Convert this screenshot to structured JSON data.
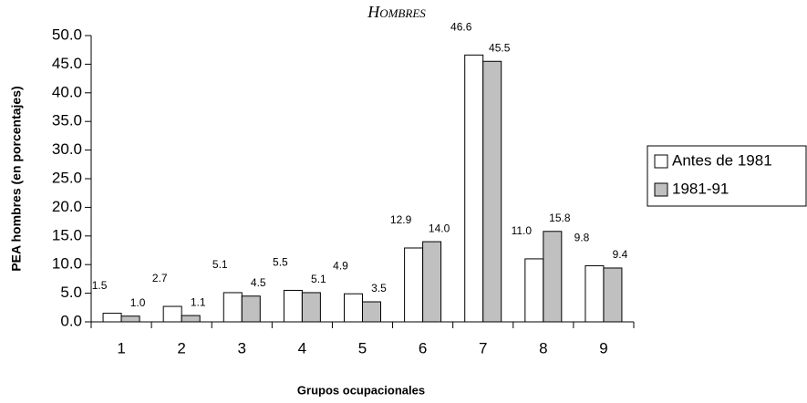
{
  "chart_data": {
    "type": "bar",
    "title": "Hombres",
    "x_label": "Grupos ocupacionales",
    "y_label": "PEA hombres (en porcentajes)",
    "categories": [
      "1",
      "2",
      "3",
      "4",
      "5",
      "6",
      "7",
      "8",
      "9"
    ],
    "series": [
      {
        "name": "Antes de 1981",
        "color": "#ffffff",
        "values": [
          1.5,
          2.7,
          5.1,
          5.5,
          4.9,
          12.9,
          46.6,
          11.0,
          9.8
        ],
        "value_labels": [
          "1.5",
          "2.7",
          "5.1",
          "5.5",
          "4.9",
          "12.9",
          "46.6",
          "11.0",
          "9.8"
        ]
      },
      {
        "name": "1981-91",
        "color": "#c0c0c0",
        "values": [
          1.0,
          1.1,
          4.5,
          5.1,
          3.5,
          14.0,
          45.5,
          15.8,
          9.4
        ],
        "value_labels": [
          "1.0",
          "1.1",
          "4.5",
          "5.1",
          "3.5",
          "14.0",
          "45.5",
          "15.8",
          "9.4"
        ]
      }
    ],
    "ylim": [
      0,
      50
    ],
    "yticks": [
      {
        "value": 0,
        "label": "0.0"
      },
      {
        "value": 5,
        "label": "5.0"
      },
      {
        "value": 10,
        "label": "10.0"
      },
      {
        "value": 15,
        "label": "15.0"
      },
      {
        "value": 20,
        "label": "20.0"
      },
      {
        "value": 25,
        "label": "25.0"
      },
      {
        "value": 30,
        "label": "30.0"
      },
      {
        "value": 35,
        "label": "35.0"
      },
      {
        "value": 40,
        "label": "40.0"
      },
      {
        "value": 45,
        "label": "45.0"
      },
      {
        "value": 50,
        "label": "50.0"
      }
    ],
    "legend": "right"
  }
}
